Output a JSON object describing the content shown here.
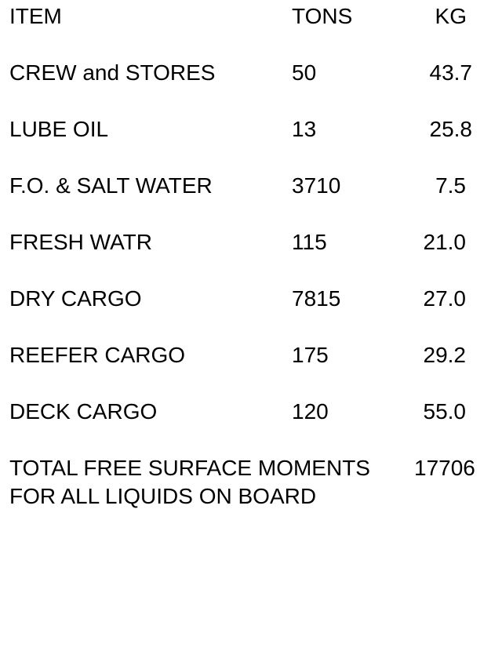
{
  "table": {
    "headers": {
      "item": "ITEM",
      "tons": "TONS",
      "kg": "KG"
    },
    "rows": [
      {
        "item": "CREW and STORES",
        "tons": "50",
        "kg": "43.7"
      },
      {
        "item": "LUBE OIL",
        "tons": "13",
        "kg": "25.8"
      },
      {
        "item": "F.O. & SALT WATER",
        "tons": "3710",
        "kg": "7.5"
      },
      {
        "item": "FRESH WATR",
        "tons": "115",
        "kg": "21.0"
      },
      {
        "item": "DRY CARGO",
        "tons": "7815",
        "kg": "27.0"
      },
      {
        "item": "REEFER CARGO",
        "tons": "175",
        "kg": "29.2"
      },
      {
        "item": "DECK CARGO",
        "tons": "120",
        "kg": "55.0"
      }
    ]
  },
  "total": {
    "label_line1": "TOTAL FREE SURFACE MOMENTS",
    "value": "17706",
    "label_line2": "FOR ALL LIQUIDS ON BOARD"
  }
}
